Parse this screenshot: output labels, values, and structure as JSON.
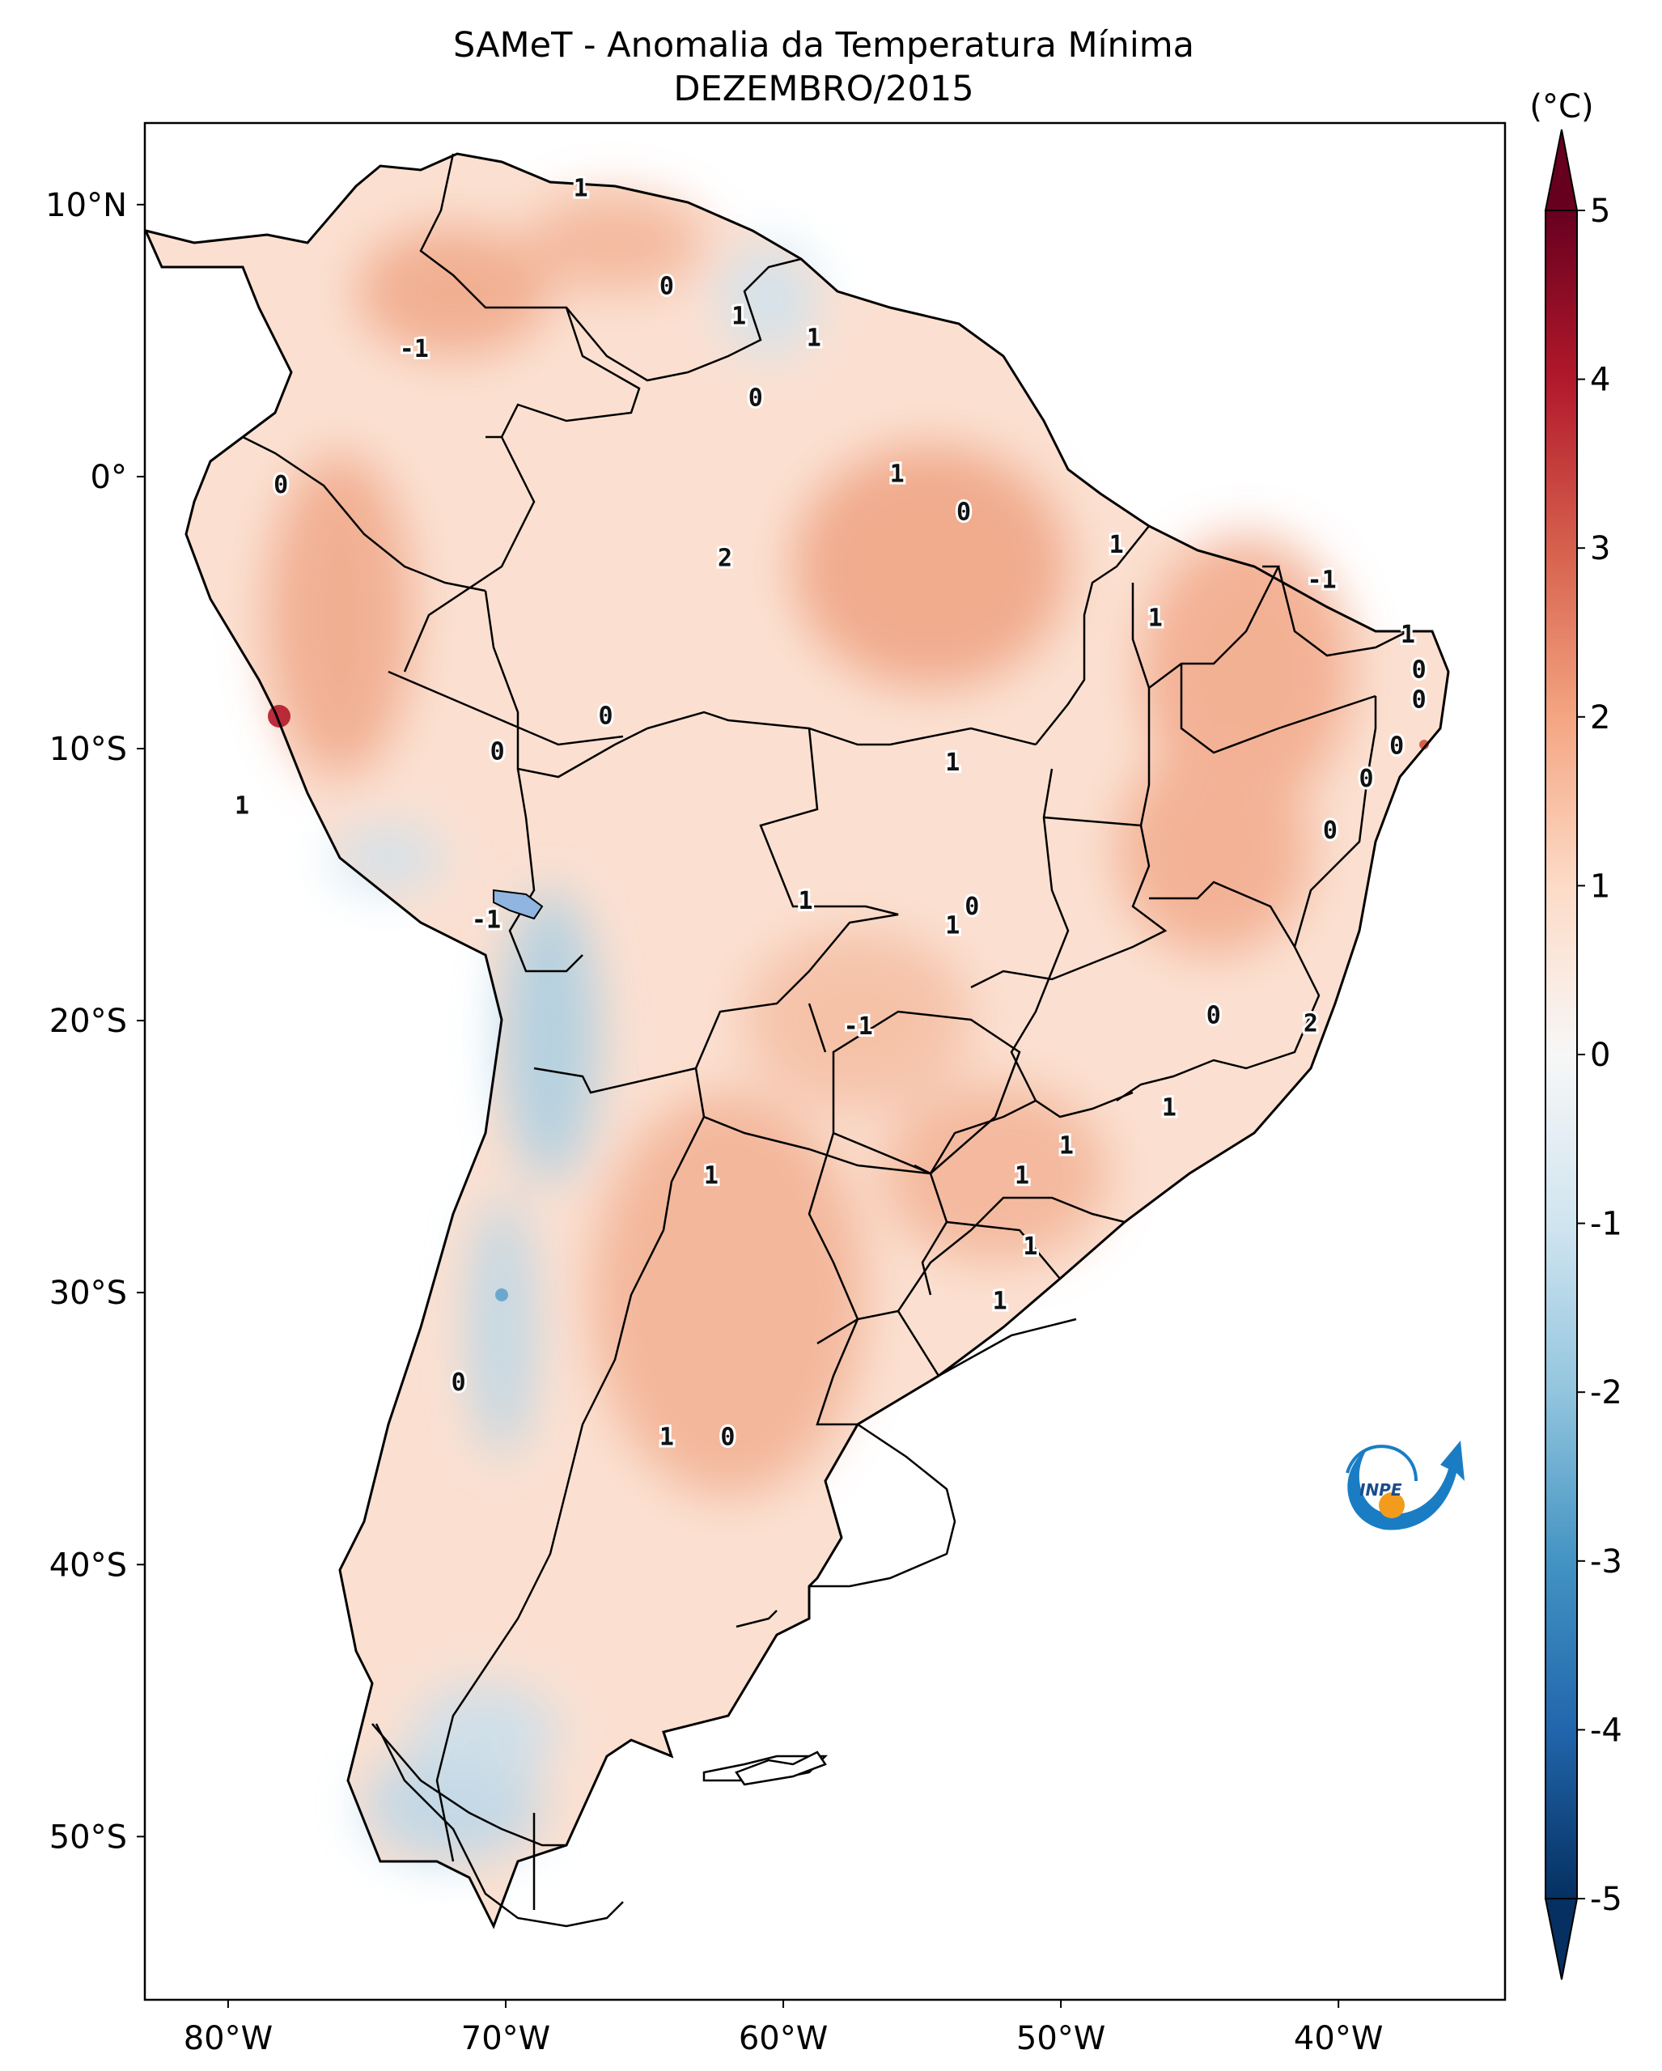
{
  "title_line1": "SAMeT - Anomalia da Temperatura Mínima",
  "title_line2": "DEZEMBRO/2015",
  "colorbar": {
    "unit": "(°C)",
    "ticks": [
      "5",
      "4",
      "3",
      "2",
      "1",
      "0",
      "-1",
      "-2",
      "-3",
      "-4",
      "-5"
    ],
    "range": [
      -5,
      5
    ],
    "colormap": "RdBu_r",
    "extend": "both",
    "colors": [
      "#053061",
      "#2166ac",
      "#4393c3",
      "#92c5de",
      "#d1e5f0",
      "#f7f7f7",
      "#fddbc7",
      "#f4a582",
      "#d6604d",
      "#b2182b",
      "#67001f"
    ]
  },
  "map": {
    "lon_labels": [
      "80°W",
      "70°W",
      "60°W",
      "50°W",
      "40°W"
    ],
    "lat_labels": [
      "10°N",
      "0°",
      "10°S",
      "20°S",
      "30°S",
      "40°S",
      "50°S"
    ],
    "lon_range": [
      -83,
      -34
    ],
    "lat_range": [
      -56,
      13
    ],
    "contour_labels": [
      {
        "text": "1",
        "lon": -67.3,
        "lat": 10.6
      },
      {
        "text": "0",
        "lon": -64.2,
        "lat": 7.0
      },
      {
        "text": "1",
        "lon": -61.6,
        "lat": 5.9
      },
      {
        "text": "1",
        "lon": -58.9,
        "lat": 5.1
      },
      {
        "text": "-1",
        "lon": -73.3,
        "lat": 4.7
      },
      {
        "text": "0",
        "lon": -61.0,
        "lat": 2.9
      },
      {
        "text": "1",
        "lon": -55.9,
        "lat": 0.1
      },
      {
        "text": "0",
        "lon": -53.5,
        "lat": -1.3
      },
      {
        "text": "0",
        "lon": -78.1,
        "lat": -0.3
      },
      {
        "text": "2",
        "lon": -62.1,
        "lat": -3.0
      },
      {
        "text": "1",
        "lon": -48.0,
        "lat": -2.5
      },
      {
        "text": "-1",
        "lon": -40.6,
        "lat": -3.8
      },
      {
        "text": "1",
        "lon": -46.6,
        "lat": -5.2
      },
      {
        "text": "1",
        "lon": -37.5,
        "lat": -5.8
      },
      {
        "text": "0",
        "lon": -37.1,
        "lat": -7.1
      },
      {
        "text": "0",
        "lon": -37.1,
        "lat": -8.2
      },
      {
        "text": "0",
        "lon": -37.9,
        "lat": -9.9
      },
      {
        "text": "0",
        "lon": -39.0,
        "lat": -11.1
      },
      {
        "text": "1",
        "lon": -53.9,
        "lat": -10.5
      },
      {
        "text": "0",
        "lon": -66.4,
        "lat": -8.8
      },
      {
        "text": "0",
        "lon": -70.3,
        "lat": -10.1
      },
      {
        "text": "1",
        "lon": -79.5,
        "lat": -12.1
      },
      {
        "text": "0",
        "lon": -40.3,
        "lat": -13.0
      },
      {
        "text": "1",
        "lon": -59.2,
        "lat": -15.6
      },
      {
        "text": "0",
        "lon": -53.2,
        "lat": -15.8
      },
      {
        "text": "1",
        "lon": -53.9,
        "lat": -16.5
      },
      {
        "text": "-1",
        "lon": -70.7,
        "lat": -16.3
      },
      {
        "text": "-1",
        "lon": -57.3,
        "lat": -20.2
      },
      {
        "text": "0",
        "lon": -44.5,
        "lat": -19.8
      },
      {
        "text": "2",
        "lon": -41.0,
        "lat": -20.1
      },
      {
        "text": "1",
        "lon": -46.1,
        "lat": -23.2
      },
      {
        "text": "1",
        "lon": -49.8,
        "lat": -24.6
      },
      {
        "text": "1",
        "lon": -62.6,
        "lat": -25.7
      },
      {
        "text": "1",
        "lon": -51.4,
        "lat": -25.7
      },
      {
        "text": "1",
        "lon": -51.1,
        "lat": -28.3
      },
      {
        "text": "1",
        "lon": -52.2,
        "lat": -30.3
      },
      {
        "text": "0",
        "lon": -71.7,
        "lat": -33.3
      },
      {
        "text": "1",
        "lon": -64.2,
        "lat": -35.3
      },
      {
        "text": "0",
        "lon": -62.0,
        "lat": -35.3
      }
    ]
  },
  "logo": {
    "text": "INPE"
  }
}
